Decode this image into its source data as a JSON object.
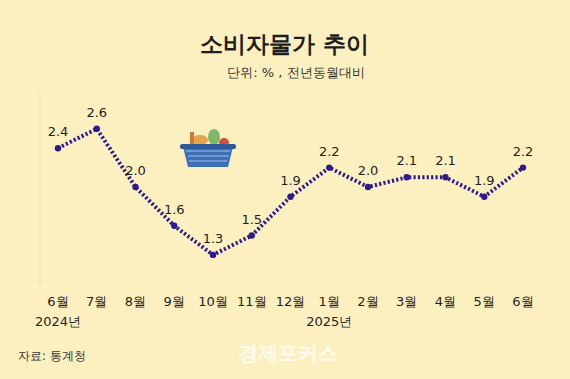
{
  "chart_data": {
    "type": "line",
    "title": "소비자물가 추이",
    "subtitle": "단위: % , 전년동월대비",
    "source": "자료: 통계청",
    "annotations": [
      "경제포커스"
    ],
    "categories": [
      "6월",
      "7월",
      "8월",
      "9월",
      "10월",
      "11월",
      "12월",
      "1월",
      "2월",
      "3월",
      "4월",
      "5월",
      "6월"
    ],
    "year_labels": [
      "2024년",
      null,
      null,
      null,
      null,
      null,
      null,
      "2025년",
      null,
      null,
      null,
      null,
      null
    ],
    "values": [
      2.4,
      2.6,
      2.0,
      1.6,
      1.3,
      1.5,
      1.9,
      2.2,
      2.0,
      2.1,
      2.1,
      1.9,
      2.2
    ],
    "value_labels": [
      "2.4",
      "2.6",
      "2.0",
      "1.6",
      "1.3",
      "1.5",
      "1.9",
      "2.2",
      "2.0",
      "2.1",
      "2.1",
      "1.9",
      "2.2"
    ],
    "color": "#2d1b8e",
    "marker": "circle",
    "line_style": "dotted",
    "data_labels": true,
    "tick_labels": "x",
    "grid": false,
    "ylim": [
      1.0,
      3.0
    ]
  }
}
